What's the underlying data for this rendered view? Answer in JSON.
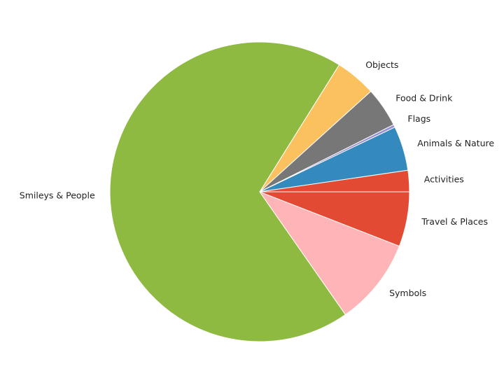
{
  "chart_data": {
    "type": "pie",
    "start_angle_deg": 0,
    "direction": "counterclockwise",
    "slices": [
      {
        "label": "Activities",
        "value": 2.3,
        "color": "#e24a33"
      },
      {
        "label": "Animals & Nature",
        "value": 4.8,
        "color": "#348abd"
      },
      {
        "label": "Flags",
        "value": 0.3,
        "color": "#988ed5"
      },
      {
        "label": "Food & Drink",
        "value": 4.3,
        "color": "#777777"
      },
      {
        "label": "Objects",
        "value": 4.4,
        "color": "#fbc15e"
      },
      {
        "label": "Smileys & People",
        "value": 68.6,
        "color": "#8eba42"
      },
      {
        "label": "Symbols",
        "value": 9.4,
        "color": "#ffb5b8"
      },
      {
        "label": "Travel & Places",
        "value": 5.9,
        "color": "#e24a33"
      }
    ]
  }
}
